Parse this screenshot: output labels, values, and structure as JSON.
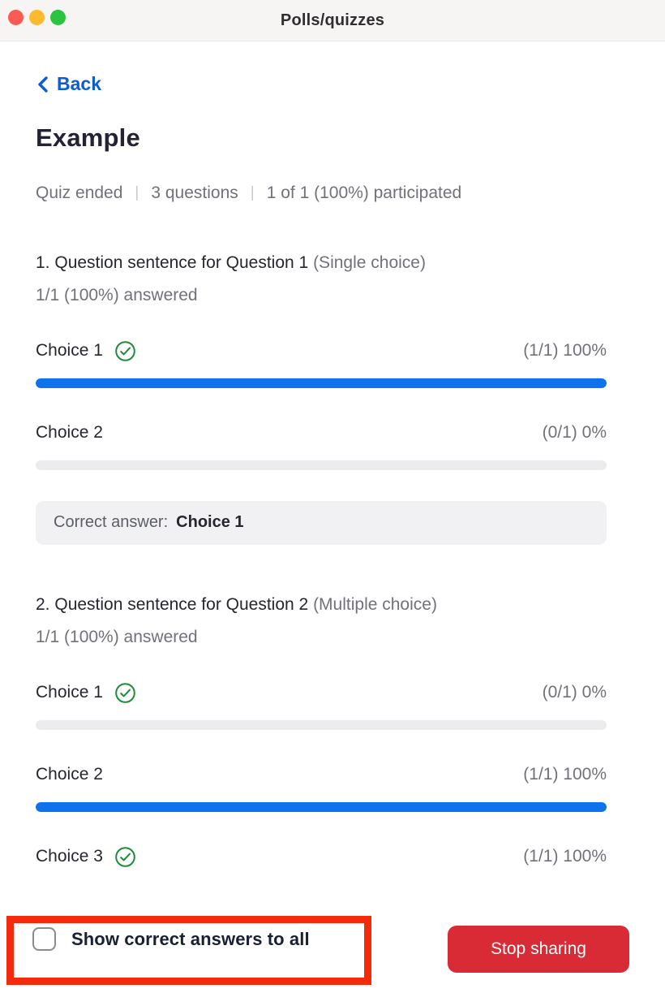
{
  "window": {
    "title": "Polls/quizzes",
    "controls": {
      "close_color": "#FB5B52",
      "minimize_color": "#FCBB2F",
      "zoom_color": "#2BC440"
    }
  },
  "nav": {
    "back_label": "Back"
  },
  "quiz": {
    "title": "Example",
    "status": "Quiz ended",
    "questions_count": "3 questions",
    "participation": "1 of 1 (100%) participated",
    "separator": "|",
    "questions": [
      {
        "number": "1.",
        "text": "Question sentence for Question 1",
        "type": "(Single choice)",
        "answered": "1/1 (100%) answered",
        "choices": [
          {
            "label": "Choice 1",
            "correct": true,
            "stat": "(1/1) 100%",
            "percent": 100
          },
          {
            "label": "Choice 2",
            "correct": false,
            "stat": "(0/1) 0%",
            "percent": 0
          }
        ],
        "correct_answer_label": "Correct answer:",
        "correct_answer_value": "Choice 1"
      },
      {
        "number": "2.",
        "text": "Question sentence for Question 2",
        "type": "(Multiple choice)",
        "answered": "1/1 (100%) answered",
        "choices": [
          {
            "label": "Choice 1",
            "correct": true,
            "stat": "(0/1) 0%",
            "percent": 0
          },
          {
            "label": "Choice 2",
            "correct": false,
            "stat": "(1/1) 100%",
            "percent": 100
          },
          {
            "label": "Choice 3",
            "correct": true,
            "stat": "(1/1) 100%",
            "percent": 100
          }
        ]
      }
    ]
  },
  "footer": {
    "checkbox_label": "Show correct answers to all",
    "checkbox_checked": false,
    "stop_button_label": "Stop sharing"
  },
  "colors": {
    "accent_blue": "#0E72ED",
    "link_blue": "#0D5CD6",
    "success_green": "#1F8B3B",
    "bar_track_gray": "#ECECEF",
    "button_red": "#D92B35",
    "annotation_red": "#F42A0C"
  }
}
